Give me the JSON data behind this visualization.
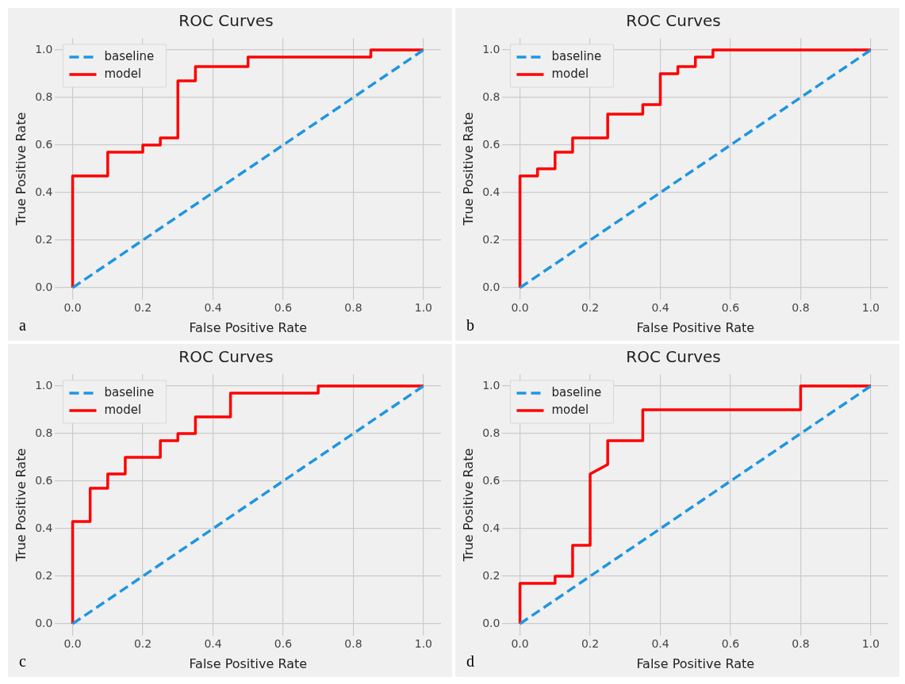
{
  "chart_data": [
    {
      "type": "line",
      "title": "ROC Curves",
      "xlabel": "False Positive Rate",
      "ylabel": "True Positive Rate",
      "xlim": [
        -0.05,
        1.05
      ],
      "ylim": [
        -0.05,
        1.05
      ],
      "xticks": [
        {
          "value": 0,
          "label": "0.0"
        },
        {
          "value": 0.2,
          "label": "0.2"
        },
        {
          "value": 0.4,
          "label": "0.4"
        },
        {
          "value": 0.6,
          "label": "0.6"
        },
        {
          "value": 0.8,
          "label": "0.8"
        },
        {
          "value": 1,
          "label": "1.0"
        }
      ],
      "yticks": [
        {
          "value": 0,
          "label": "0.0"
        },
        {
          "value": 0.2,
          "label": "0.2"
        },
        {
          "value": 0.4,
          "label": "0.4"
        },
        {
          "value": 0.6,
          "label": "0.6"
        },
        {
          "value": 0.8,
          "label": "0.8"
        },
        {
          "value": 1,
          "label": "1.0"
        }
      ],
      "grid": true,
      "legend": "top left",
      "marker": "none",
      "annotations": [
        "a"
      ],
      "series": [
        {
          "name": "baseline",
          "color": "#1f96de",
          "line_style": "dashed",
          "x": [
            0,
            1
          ],
          "values": [
            0,
            1
          ]
        },
        {
          "name": "model",
          "color": "#ff0000",
          "line_style": "solid",
          "x": [
            0,
            0,
            0.1,
            0.1,
            0.2,
            0.2,
            0.25,
            0.25,
            0.3,
            0.3,
            0.35,
            0.35,
            0.5,
            0.5,
            0.85,
            0.85,
            1
          ],
          "values": [
            0,
            0.47,
            0.47,
            0.57,
            0.57,
            0.6,
            0.6,
            0.63,
            0.63,
            0.87,
            0.87,
            0.93,
            0.93,
            0.97,
            0.97,
            1,
            1
          ]
        }
      ]
    },
    {
      "type": "line",
      "title": "ROC Curves",
      "xlabel": "False Positive Rate",
      "ylabel": "True Positive Rate",
      "xlim": [
        -0.05,
        1.05
      ],
      "ylim": [
        -0.05,
        1.05
      ],
      "xticks": [
        {
          "value": 0,
          "label": "0.0"
        },
        {
          "value": 0.2,
          "label": "0.2"
        },
        {
          "value": 0.4,
          "label": "0.4"
        },
        {
          "value": 0.6,
          "label": "0.6"
        },
        {
          "value": 0.8,
          "label": "0.8"
        },
        {
          "value": 1,
          "label": "1.0"
        }
      ],
      "yticks": [
        {
          "value": 0,
          "label": "0.0"
        },
        {
          "value": 0.2,
          "label": "0.2"
        },
        {
          "value": 0.4,
          "label": "0.4"
        },
        {
          "value": 0.6,
          "label": "0.6"
        },
        {
          "value": 0.8,
          "label": "0.8"
        },
        {
          "value": 1,
          "label": "1.0"
        }
      ],
      "grid": true,
      "legend": "top left",
      "marker": "none",
      "annotations": [
        "b"
      ],
      "series": [
        {
          "name": "baseline",
          "color": "#1f96de",
          "line_style": "dashed",
          "x": [
            0,
            1
          ],
          "values": [
            0,
            1
          ]
        },
        {
          "name": "model",
          "color": "#ff0000",
          "line_style": "solid",
          "x": [
            0,
            0,
            0.05,
            0.05,
            0.1,
            0.1,
            0.15,
            0.15,
            0.25,
            0.25,
            0.35,
            0.35,
            0.4,
            0.4,
            0.45,
            0.45,
            0.5,
            0.5,
            0.55,
            0.55,
            1
          ],
          "values": [
            0,
            0.47,
            0.47,
            0.5,
            0.5,
            0.57,
            0.57,
            0.63,
            0.63,
            0.73,
            0.73,
            0.77,
            0.77,
            0.9,
            0.9,
            0.93,
            0.93,
            0.97,
            0.97,
            1,
            1
          ]
        }
      ]
    },
    {
      "type": "line",
      "title": "ROC Curves",
      "xlabel": "False Positive Rate",
      "ylabel": "True Positive Rate",
      "xlim": [
        -0.05,
        1.05
      ],
      "ylim": [
        -0.05,
        1.05
      ],
      "xticks": [
        {
          "value": 0,
          "label": "0.0"
        },
        {
          "value": 0.2,
          "label": "0.2"
        },
        {
          "value": 0.4,
          "label": "0.4"
        },
        {
          "value": 0.6,
          "label": "0.6"
        },
        {
          "value": 0.8,
          "label": "0.8"
        },
        {
          "value": 1,
          "label": "1.0"
        }
      ],
      "yticks": [
        {
          "value": 0,
          "label": "0.0"
        },
        {
          "value": 0.2,
          "label": "0.2"
        },
        {
          "value": 0.4,
          "label": "0.4"
        },
        {
          "value": 0.6,
          "label": "0.6"
        },
        {
          "value": 0.8,
          "label": "0.8"
        },
        {
          "value": 1,
          "label": "1.0"
        }
      ],
      "grid": true,
      "legend": "top left",
      "marker": "none",
      "annotations": [
        "c"
      ],
      "series": [
        {
          "name": "baseline",
          "color": "#1f96de",
          "line_style": "dashed",
          "x": [
            0,
            1
          ],
          "values": [
            0,
            1
          ]
        },
        {
          "name": "model",
          "color": "#ff0000",
          "line_style": "solid",
          "x": [
            0,
            0,
            0.05,
            0.05,
            0.1,
            0.1,
            0.15,
            0.15,
            0.25,
            0.25,
            0.3,
            0.3,
            0.35,
            0.35,
            0.45,
            0.45,
            0.7,
            0.7,
            1
          ],
          "values": [
            0,
            0.43,
            0.43,
            0.57,
            0.57,
            0.63,
            0.63,
            0.7,
            0.7,
            0.77,
            0.77,
            0.8,
            0.8,
            0.87,
            0.87,
            0.97,
            0.97,
            1,
            1
          ]
        }
      ]
    },
    {
      "type": "line",
      "title": "ROC Curves",
      "xlabel": "False Positive Rate",
      "ylabel": "True Positive Rate",
      "xlim": [
        -0.05,
        1.05
      ],
      "ylim": [
        -0.05,
        1.05
      ],
      "xticks": [
        {
          "value": 0,
          "label": "0.0"
        },
        {
          "value": 0.2,
          "label": "0.2"
        },
        {
          "value": 0.4,
          "label": "0.4"
        },
        {
          "value": 0.6,
          "label": "0.6"
        },
        {
          "value": 0.8,
          "label": "0.8"
        },
        {
          "value": 1,
          "label": "1.0"
        }
      ],
      "yticks": [
        {
          "value": 0,
          "label": "0.0"
        },
        {
          "value": 0.2,
          "label": "0.2"
        },
        {
          "value": 0.4,
          "label": "0.4"
        },
        {
          "value": 0.6,
          "label": "0.6"
        },
        {
          "value": 0.8,
          "label": "0.8"
        },
        {
          "value": 1,
          "label": "1.0"
        }
      ],
      "grid": true,
      "legend": "top left",
      "marker": "none",
      "annotations": [
        "d"
      ],
      "series": [
        {
          "name": "baseline",
          "color": "#1f96de",
          "line_style": "dashed",
          "x": [
            0,
            1
          ],
          "values": [
            0,
            1
          ]
        },
        {
          "name": "model",
          "color": "#ff0000",
          "line_style": "solid",
          "x": [
            0,
            0,
            0.1,
            0.1,
            0.15,
            0.15,
            0.2,
            0.2,
            0.25,
            0.25,
            0.35,
            0.35,
            0.8,
            0.8,
            1
          ],
          "values": [
            0,
            0.17,
            0.17,
            0.2,
            0.2,
            0.33,
            0.33,
            0.63,
            0.67,
            0.77,
            0.77,
            0.9,
            0.9,
            1,
            1
          ]
        }
      ]
    }
  ]
}
